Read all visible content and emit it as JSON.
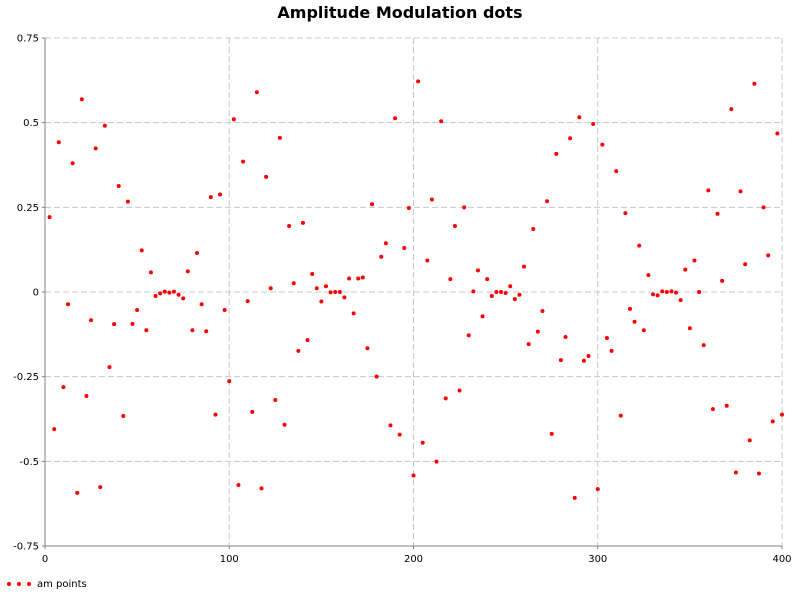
{
  "chart_data": {
    "type": "scatter",
    "title": "Amplitude Modulation dots",
    "xlabel": "",
    "ylabel": "",
    "xlim": [
      0,
      400
    ],
    "ylim": [
      -0.75,
      0.75
    ],
    "x_ticks": [
      "0",
      "100",
      "200",
      "300",
      "400"
    ],
    "y_ticks": [
      "-0.75",
      "-0.5",
      "-0.25",
      "0",
      "0.25",
      "0.5",
      "0.75"
    ],
    "grid": true,
    "legend": "bottom-left",
    "series": [
      {
        "name": "am points",
        "color": "#ff0000",
        "points": [
          [
            2.5,
            0.221
          ],
          [
            5,
            -0.405
          ],
          [
            7.5,
            0.442
          ],
          [
            10,
            -0.281
          ],
          [
            12.5,
            -0.036
          ],
          [
            15,
            0.38
          ],
          [
            17.5,
            -0.593
          ],
          [
            20,
            0.569
          ],
          [
            22.5,
            -0.307
          ],
          [
            25,
            -0.083
          ],
          [
            27.5,
            0.424
          ],
          [
            30,
            -0.576
          ],
          [
            32.5,
            0.491
          ],
          [
            35,
            -0.222
          ],
          [
            37.5,
            -0.095
          ],
          [
            40,
            0.313
          ],
          [
            42.5,
            -0.366
          ],
          [
            45,
            0.267
          ],
          [
            47.5,
            -0.094
          ],
          [
            50,
            -0.053
          ],
          [
            52.5,
            0.123
          ],
          [
            55,
            -0.113
          ],
          [
            57.5,
            0.058
          ],
          [
            60,
            -0.012
          ],
          [
            62.5,
            -0.004
          ],
          [
            65,
            0.001
          ],
          [
            67.5,
            -0.002
          ],
          [
            70,
            0.001
          ],
          [
            72.5,
            -0.008
          ],
          [
            75,
            -0.019
          ],
          [
            77.5,
            0.061
          ],
          [
            80,
            -0.113
          ],
          [
            82.5,
            0.115
          ],
          [
            85,
            -0.036
          ],
          [
            87.5,
            -0.116
          ],
          [
            90,
            0.28
          ],
          [
            92.5,
            -0.362
          ],
          [
            95,
            0.288
          ],
          [
            97.5,
            -0.053
          ],
          [
            100,
            -0.263
          ],
          [
            102.5,
            0.51
          ],
          [
            105,
            -0.57
          ],
          [
            107.5,
            0.385
          ],
          [
            110,
            -0.027
          ],
          [
            112.5,
            -0.354
          ],
          [
            115,
            0.59
          ],
          [
            117.5,
            -0.58
          ],
          [
            120,
            0.34
          ],
          [
            122.5,
            0.011
          ],
          [
            125,
            -0.319
          ],
          [
            127.5,
            0.455
          ],
          [
            130,
            -0.392
          ],
          [
            132.5,
            0.195
          ],
          [
            135,
            0.026
          ],
          [
            137.5,
            -0.174
          ],
          [
            140,
            0.204
          ],
          [
            142.5,
            -0.142
          ],
          [
            145,
            0.053
          ],
          [
            147.5,
            0.011
          ],
          [
            150,
            -0.028
          ],
          [
            152.5,
            0.017
          ],
          [
            155,
            -0.001
          ],
          [
            157.5,
            0.0
          ],
          [
            160,
            0.0
          ],
          [
            162.5,
            -0.016
          ],
          [
            165,
            0.04
          ],
          [
            167.5,
            -0.063
          ],
          [
            170,
            0.04
          ],
          [
            172.5,
            0.043
          ],
          [
            175,
            -0.166
          ],
          [
            177.5,
            0.259
          ],
          [
            180,
            -0.25
          ],
          [
            182.5,
            0.104
          ],
          [
            185,
            0.144
          ],
          [
            187.5,
            -0.394
          ],
          [
            190,
            0.513
          ],
          [
            192.5,
            -0.421
          ],
          [
            195,
            0.13
          ],
          [
            197.5,
            0.248
          ],
          [
            200,
            -0.542
          ],
          [
            202.5,
            0.622
          ],
          [
            205,
            -0.445
          ],
          [
            207.5,
            0.093
          ],
          [
            210,
            0.273
          ],
          [
            212.5,
            -0.501
          ],
          [
            215,
            0.504
          ],
          [
            217.5,
            -0.314
          ],
          [
            220,
            0.038
          ],
          [
            222.5,
            0.195
          ],
          [
            225,
            -0.291
          ],
          [
            227.5,
            0.25
          ],
          [
            230,
            -0.128
          ],
          [
            232.5,
            0.002
          ],
          [
            235,
            0.064
          ],
          [
            237.5,
            -0.072
          ],
          [
            240,
            0.038
          ],
          [
            242.5,
            -0.012
          ],
          [
            245,
            0.0
          ],
          [
            247.5,
            0.0
          ],
          [
            250,
            -0.003
          ],
          [
            252.5,
            0.017
          ],
          [
            255,
            -0.021
          ],
          [
            257.5,
            -0.008
          ],
          [
            260,
            0.075
          ],
          [
            262.5,
            -0.154
          ],
          [
            265,
            0.186
          ],
          [
            267.5,
            -0.117
          ],
          [
            270,
            -0.056
          ],
          [
            272.5,
            0.268
          ],
          [
            275,
            -0.419
          ],
          [
            277.5,
            0.408
          ],
          [
            280,
            -0.201
          ],
          [
            282.5,
            -0.133
          ],
          [
            285,
            0.454
          ],
          [
            287.5,
            -0.608
          ],
          [
            290,
            0.516
          ],
          [
            292.5,
            -0.203
          ],
          [
            295,
            -0.189
          ],
          [
            297.5,
            0.496
          ],
          [
            300,
            -0.582
          ],
          [
            302.5,
            0.435
          ],
          [
            305,
            -0.136
          ],
          [
            307.5,
            -0.174
          ],
          [
            310,
            0.357
          ],
          [
            312.5,
            -0.365
          ],
          [
            315,
            0.233
          ],
          [
            317.5,
            -0.05
          ],
          [
            320,
            -0.088
          ],
          [
            322.5,
            0.137
          ],
          [
            325,
            -0.113
          ],
          [
            327.5,
            0.05
          ],
          [
            330,
            -0.007
          ],
          [
            332.5,
            -0.01
          ],
          [
            335,
            0.002
          ],
          [
            337.5,
            0.0
          ],
          [
            340,
            0.002
          ],
          [
            342.5,
            -0.002
          ],
          [
            345,
            -0.024
          ],
          [
            347.5,
            0.066
          ],
          [
            350,
            -0.107
          ],
          [
            352.5,
            0.093
          ],
          [
            355,
            0.0
          ],
          [
            357.5,
            -0.157
          ],
          [
            360,
            0.3
          ],
          [
            362.5,
            -0.346
          ],
          [
            365,
            0.231
          ],
          [
            367.5,
            0.033
          ],
          [
            370,
            -0.336
          ],
          [
            372.5,
            0.54
          ],
          [
            375,
            -0.533
          ],
          [
            377.5,
            0.297
          ],
          [
            380,
            0.082
          ],
          [
            382.5,
            -0.438
          ],
          [
            385,
            0.615
          ],
          [
            387.5,
            -0.536
          ],
          [
            390,
            0.25
          ],
          [
            392.5,
            0.108
          ],
          [
            395,
            -0.382
          ],
          [
            397.5,
            0.468
          ],
          [
            400,
            -0.362
          ]
        ]
      }
    ]
  }
}
